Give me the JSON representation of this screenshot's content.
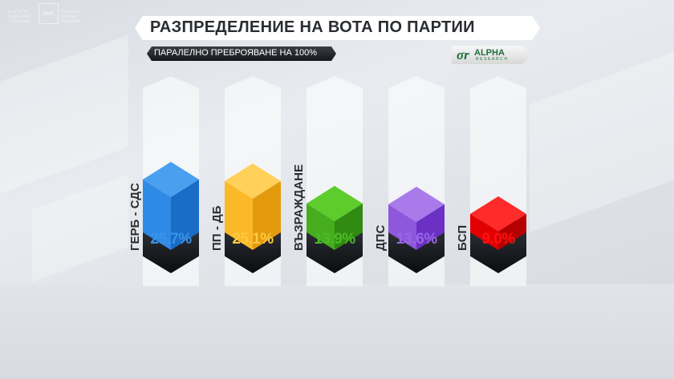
{
  "header": {
    "title": "РАЗПРЕДЕЛЕНИЕ НА ВОТА ПО ПАРТИИ",
    "subtitle": "ПАРАЛЕЛНО ПРЕБРОЯВАНЕ НА 100%",
    "source_logo": {
      "name": "ALPHA",
      "sub": "RESEARCH",
      "mark": "σr"
    }
  },
  "broadcaster_logo": {
    "left_lines": [
      "БЪЛГАРСКА",
      "НАЦИОНАЛНА",
      "ТЕЛЕВИЗИЯ"
    ],
    "center": "БНТ",
    "right_lines": [
      "BULGARIAN",
      "NATIONAL",
      "TELEVISION"
    ]
  },
  "chart_data": {
    "type": "bar",
    "title": "РАЗПРЕДЕЛЕНИЕ НА ВОТА ПО ПАРТИИ",
    "subtitle": "ПАРАЛЕЛНО ПРЕБРОЯВАНЕ НА 100%",
    "categories": [
      "ГЕРБ - СДС",
      "ПП - ДБ",
      "ВЪЗРАЖДАНЕ",
      "ДПС",
      "БСП"
    ],
    "values": [
      25.7,
      25.1,
      13.9,
      13.6,
      9.0
    ],
    "value_labels": [
      "25.7%",
      "25.1%",
      "13.9%",
      "13.6%",
      "9.0%"
    ],
    "colors": [
      "#2f8ae6",
      "#f5b41c",
      "#3fa51c",
      "#8a4fe0",
      "#e60000"
    ],
    "xlabel": "",
    "ylabel": "",
    "unit": "%",
    "source": "ALPHA RESEARCH"
  },
  "bars": [
    {
      "label": "ГЕРБ - СДС",
      "value": "25.7%",
      "top": "#4aa0ef",
      "left": "#2f8ae6",
      "right": "#1a6cc4",
      "text": "#3a93e8"
    },
    {
      "label": "ПП - ДБ",
      "value": "25.1%",
      "top": "#ffd05a",
      "left": "#fbb92a",
      "right": "#e39a0c",
      "text": "#ffc940"
    },
    {
      "label": "ВЪЗРАЖДАНЕ",
      "value": "13.9%",
      "top": "#5ccd2c",
      "left": "#45ad1e",
      "right": "#318a12",
      "text": "#4cbb25"
    },
    {
      "label": "ДПС",
      "value": "13.6%",
      "top": "#a97bea",
      "left": "#8e58dd",
      "right": "#6c30c4",
      "text": "#9a66e6"
    },
    {
      "label": "БСП",
      "value": "9.0%",
      "top": "#ff2a2a",
      "left": "#e20000",
      "right": "#b50000",
      "text": "#ff1010"
    }
  ]
}
